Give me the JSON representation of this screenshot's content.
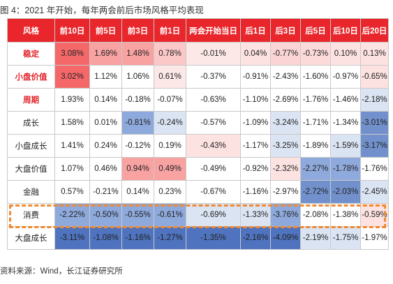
{
  "title": "图 4：2021 年开始，每年两会前后市场风格平均表现",
  "source": "资料来源：Wind，长江证券研究所",
  "colors": {
    "header_bg": "#e8262b",
    "label_red": "#e2242b",
    "highlight_border": "#f08a30"
  },
  "table": {
    "headers": [
      "风格",
      "前10日",
      "前5日",
      "前3日",
      "前1日",
      "两会开始当日",
      "后1日",
      "后3日",
      "后5日",
      "后10日",
      "后20日"
    ],
    "rows": [
      {
        "label": "稳定",
        "highlight": true,
        "cells": [
          {
            "text": "3.08%",
            "bg": "#f5686a"
          },
          {
            "text": "1.69%",
            "bg": "#f8a2a2"
          },
          {
            "text": "1.48%",
            "bg": "#f8a2a2"
          },
          {
            "text": "0.78%",
            "bg": "#fbc7c7"
          },
          {
            "text": "-0.01%",
            "bg": "#fde8e8"
          },
          {
            "text": "0.04%",
            "bg": "#fde2e2"
          },
          {
            "text": "-0.77%",
            "bg": "#fbd5d5"
          },
          {
            "text": "-0.73%",
            "bg": "#fcdada"
          },
          {
            "text": "0.10%",
            "bg": "#fde2e2"
          },
          {
            "text": "0.13%",
            "bg": "#fde2e2"
          }
        ]
      },
      {
        "label": "小盘价值",
        "highlight": true,
        "cells": [
          {
            "text": "3.02%",
            "bg": "#f5686a"
          },
          {
            "text": "1.12%",
            "bg": "#ffffff"
          },
          {
            "text": "1.06%",
            "bg": "#ffffff"
          },
          {
            "text": "0.61%",
            "bg": "#fde8e8"
          },
          {
            "text": "-0.37%",
            "bg": "#ffffff"
          },
          {
            "text": "-0.91%",
            "bg": "#ffffff"
          },
          {
            "text": "-2.43%",
            "bg": "#ffffff"
          },
          {
            "text": "-1.60%",
            "bg": "#ffffff"
          },
          {
            "text": "-0.97%",
            "bg": "#ffffff"
          },
          {
            "text": "-0.65%",
            "bg": "#fde2e2"
          }
        ]
      },
      {
        "label": "周期",
        "highlight": true,
        "cells": [
          {
            "text": "1.93%",
            "bg": "#ffffff"
          },
          {
            "text": "0.14%",
            "bg": "#ffffff"
          },
          {
            "text": "-0.18%",
            "bg": "#ffffff"
          },
          {
            "text": "-0.07%",
            "bg": "#ffffff"
          },
          {
            "text": "-0.63%",
            "bg": "#ffffff"
          },
          {
            "text": "-1.10%",
            "bg": "#ffffff"
          },
          {
            "text": "-2.69%",
            "bg": "#ffffff"
          },
          {
            "text": "-1.76%",
            "bg": "#ffffff"
          },
          {
            "text": "-1.46%",
            "bg": "#ffffff"
          },
          {
            "text": "-2.18%",
            "bg": "#dbe4f3"
          }
        ]
      },
      {
        "label": "成长",
        "highlight": false,
        "cells": [
          {
            "text": "1.58%",
            "bg": "#ffffff"
          },
          {
            "text": "0.01%",
            "bg": "#ffffff"
          },
          {
            "text": "-0.81%",
            "bg": "#8ea9db"
          },
          {
            "text": "-0.24%",
            "bg": "#dbe4f3"
          },
          {
            "text": "-0.57%",
            "bg": "#ffffff"
          },
          {
            "text": "-1.09%",
            "bg": "#ffffff"
          },
          {
            "text": "-3.24%",
            "bg": "#dbe4f3"
          },
          {
            "text": "-1.71%",
            "bg": "#ffffff"
          },
          {
            "text": "-1.34%",
            "bg": "#ffffff"
          },
          {
            "text": "-3.01%",
            "bg": "#7291cc"
          }
        ]
      },
      {
        "label": "小盘成长",
        "highlight": false,
        "cells": [
          {
            "text": "1.41%",
            "bg": "#ffffff"
          },
          {
            "text": "0.24%",
            "bg": "#ffffff"
          },
          {
            "text": "-0.12%",
            "bg": "#ffffff"
          },
          {
            "text": "0.19%",
            "bg": "#ffffff"
          },
          {
            "text": "-0.43%",
            "bg": "#fde2e2"
          },
          {
            "text": "-1.17%",
            "bg": "#ffffff"
          },
          {
            "text": "-3.25%",
            "bg": "#dbe4f3"
          },
          {
            "text": "-1.89%",
            "bg": "#ffffff"
          },
          {
            "text": "-1.59%",
            "bg": "#dbe4f3"
          },
          {
            "text": "-3.17%",
            "bg": "#7291cc"
          }
        ]
      },
      {
        "label": "大盘价值",
        "highlight": false,
        "cells": [
          {
            "text": "1.07%",
            "bg": "#ffffff"
          },
          {
            "text": "0.46%",
            "bg": "#ffffff"
          },
          {
            "text": "0.94%",
            "bg": "#f8a2a2"
          },
          {
            "text": "0.49%",
            "bg": "#f8a2a2"
          },
          {
            "text": "-0.49%",
            "bg": "#ffffff"
          },
          {
            "text": "-0.92%",
            "bg": "#ffffff"
          },
          {
            "text": "-2.32%",
            "bg": "#fde2e2"
          },
          {
            "text": "-2.27%",
            "bg": "#8ea9db"
          },
          {
            "text": "-1.78%",
            "bg": "#8ea9db"
          },
          {
            "text": "-1.76%",
            "bg": "#ffffff"
          }
        ]
      },
      {
        "label": "金融",
        "highlight": false,
        "cells": [
          {
            "text": "0.57%",
            "bg": "#ffffff"
          },
          {
            "text": "-0.21%",
            "bg": "#ffffff"
          },
          {
            "text": "0.14%",
            "bg": "#ffffff"
          },
          {
            "text": "0.23%",
            "bg": "#ffffff"
          },
          {
            "text": "-0.67%",
            "bg": "#ffffff"
          },
          {
            "text": "-1.16%",
            "bg": "#ffffff"
          },
          {
            "text": "-2.97%",
            "bg": "#ffffff"
          },
          {
            "text": "-2.72%",
            "bg": "#7291cc"
          },
          {
            "text": "-2.03%",
            "bg": "#7291cc"
          },
          {
            "text": "-2.45%",
            "bg": "#dbe4f3"
          }
        ]
      },
      {
        "label": "消费",
        "highlight": false,
        "cells": [
          {
            "text": "-2.22%",
            "bg": "#8ea9db"
          },
          {
            "text": "-0.50%",
            "bg": "#8ea9db"
          },
          {
            "text": "-0.55%",
            "bg": "#8ea9db"
          },
          {
            "text": "-0.61%",
            "bg": "#8ea9db"
          },
          {
            "text": "-0.69%",
            "bg": "#dbe4f3"
          },
          {
            "text": "-1.33%",
            "bg": "#dbe4f3"
          },
          {
            "text": "-3.76%",
            "bg": "#8ea9db"
          },
          {
            "text": "-2.08%",
            "bg": "#ffffff"
          },
          {
            "text": "-1.38%",
            "bg": "#ffffff"
          },
          {
            "text": "-0.59%",
            "bg": "#fde2e2"
          }
        ]
      },
      {
        "label": "大盘成长",
        "highlight": false,
        "cells": [
          {
            "text": "-3.11%",
            "bg": "#4f73be"
          },
          {
            "text": "-1.08%",
            "bg": "#4f73be"
          },
          {
            "text": "-1.16%",
            "bg": "#4f73be"
          },
          {
            "text": "-1.27%",
            "bg": "#4f73be"
          },
          {
            "text": "-1.35%",
            "bg": "#4f73be"
          },
          {
            "text": "-2.16%",
            "bg": "#4f73be"
          },
          {
            "text": "-4.09%",
            "bg": "#4f73be"
          },
          {
            "text": "-2.19%",
            "bg": "#dbe4f3"
          },
          {
            "text": "-1.75%",
            "bg": "#dbe4f3"
          },
          {
            "text": "-1.97%",
            "bg": "#ffffff"
          }
        ]
      }
    ]
  }
}
